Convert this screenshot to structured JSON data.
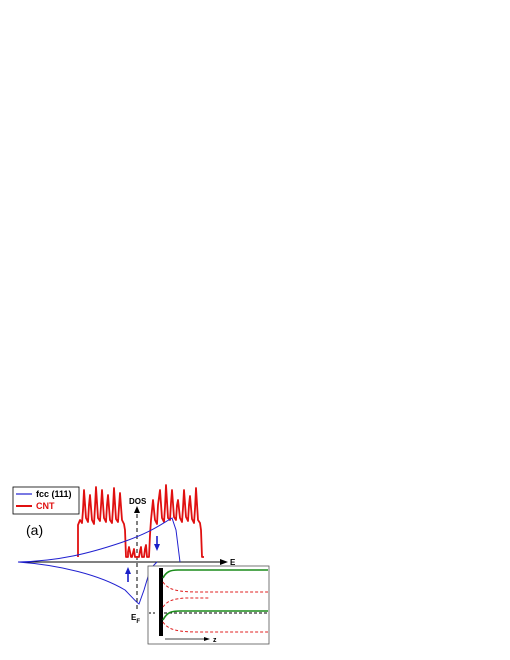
{
  "panel_label": "(a)",
  "legend": {
    "items": [
      {
        "label": "fcc (111)",
        "color": "#2020d0"
      },
      {
        "label": "CNT",
        "color": "#e01010"
      }
    ]
  },
  "axes": {
    "y_label": "DOS",
    "x_label": "E",
    "fermi_label": "E",
    "fermi_subscript": "F"
  },
  "inset": {
    "axis_label": "z",
    "colors": {
      "solid": "#1a8c1a",
      "dashed": "#e02020",
      "wall": "#000000"
    }
  },
  "colors": {
    "fcc": "#2020d0",
    "cnt": "#e01010",
    "axis": "#000000",
    "spin_arrow": "#1a20c8"
  }
}
